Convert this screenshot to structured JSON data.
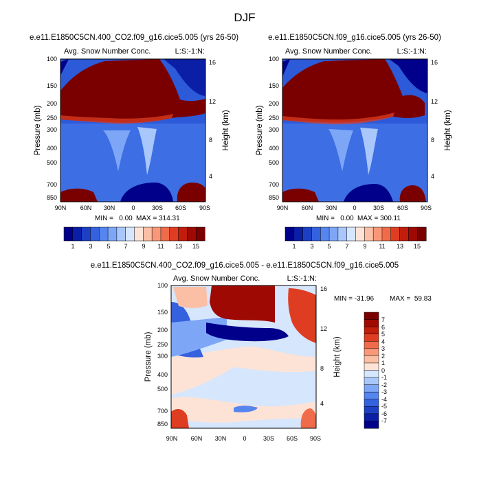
{
  "figure": {
    "title": "DJF"
  },
  "colors": {
    "sequential": [
      "#00008b",
      "#0a1fa6",
      "#1c3fc4",
      "#3461dd",
      "#5585ee",
      "#7ea6f7",
      "#a9c7fb",
      "#d6e6fd",
      "#fde3d6",
      "#fbbfa5",
      "#f89878",
      "#f06b4a",
      "#de3d22",
      "#c11d0c",
      "#9e0a03",
      "#7a0000"
    ],
    "diverging": [
      "#00008b",
      "#0a1fa6",
      "#1c3fc4",
      "#3461dd",
      "#5585ee",
      "#7ea6f7",
      "#a9c7fb",
      "#d6e6fd",
      "#fde3d6",
      "#fbbfa5",
      "#f89878",
      "#f06b4a",
      "#de3d22",
      "#c11d0c",
      "#9e0a03",
      "#7a0000"
    ]
  },
  "chart_data": [
    {
      "type": "heatmap",
      "id": "panel1",
      "title": "e.e11.E1850C5CN.400_CO2.f09_g16.cice5.005 (yrs 26-50)",
      "subtitle_left": "Avg. Snow Number Conc.",
      "subtitle_right": "L:S:-1:N:",
      "x_ticks": [
        "90N",
        "60N",
        "30N",
        "0",
        "30S",
        "60S",
        "90S"
      ],
      "xlim": [
        -90,
        90
      ],
      "ylabel": "Pressure (mb)",
      "y_ticks": [
        100,
        150,
        200,
        250,
        300,
        400,
        500,
        700,
        850
      ],
      "ylim": [
        100,
        925
      ],
      "ylabel_right": "Height (km)",
      "y_right_ticks": [
        16,
        12,
        8,
        4
      ],
      "min_label": "MIN =   0.00",
      "max_label": "MAX = 314.31",
      "min": 0.0,
      "max": 314.31,
      "colorbar_levels": [
        1,
        2,
        3,
        4,
        5,
        6,
        7,
        8,
        9,
        10,
        11,
        12,
        13,
        14,
        15
      ],
      "colorbar_tick_labels": [
        "1",
        "3",
        "5",
        "7",
        "9",
        "11",
        "13",
        "15"
      ]
    },
    {
      "type": "heatmap",
      "id": "panel2",
      "title": "e.e11.E1850C5CN.f09_g16.cice5.005 (yrs 26-50)",
      "subtitle_left": "Avg. Snow Number Conc.",
      "subtitle_right": "L:S:-1:N:",
      "x_ticks": [
        "90N",
        "60N",
        "30N",
        "0",
        "30S",
        "60S",
        "90S"
      ],
      "xlim": [
        -90,
        90
      ],
      "ylabel": "Pressure (mb)",
      "y_ticks": [
        100,
        150,
        200,
        250,
        300,
        400,
        500,
        700,
        850
      ],
      "ylim": [
        100,
        925
      ],
      "ylabel_right": "Height (km)",
      "y_right_ticks": [
        16,
        12,
        8,
        4
      ],
      "min_label": "MIN =   0.00",
      "max_label": "MAX = 300.11",
      "min": 0.0,
      "max": 300.11,
      "colorbar_levels": [
        1,
        2,
        3,
        4,
        5,
        6,
        7,
        8,
        9,
        10,
        11,
        12,
        13,
        14,
        15
      ],
      "colorbar_tick_labels": [
        "1",
        "3",
        "5",
        "7",
        "9",
        "11",
        "13",
        "15"
      ]
    },
    {
      "type": "heatmap",
      "id": "panel3",
      "title": "e.e11.E1850C5CN.400_CO2.f09_g16.cice5.005 - e.e11.E1850C5CN.f09_g16.cice5.005",
      "subtitle_left": "Avg. Snow Number Conc.",
      "subtitle_right": "L:S:-1:N:",
      "x_ticks": [
        "90N",
        "60N",
        "30N",
        "0",
        "30S",
        "60S",
        "90S"
      ],
      "xlim": [
        -90,
        90
      ],
      "ylabel": "Pressure (mb)",
      "y_ticks": [
        100,
        150,
        200,
        250,
        300,
        400,
        500,
        700,
        850
      ],
      "ylim": [
        100,
        925
      ],
      "ylabel_right": "Height (km)",
      "y_right_ticks": [
        16,
        12,
        8,
        4
      ],
      "min_label": "MIN = -31.96",
      "max_label": "MAX =  59.83",
      "min": -31.96,
      "max": 59.83,
      "colorbar_levels": [
        -7,
        -6,
        -5,
        -4,
        -3,
        -2,
        -1,
        0,
        1,
        2,
        3,
        4,
        5,
        6,
        7
      ],
      "colorbar_tick_labels": [
        "-7",
        "-6",
        "-5",
        "-4",
        "-3",
        "-2",
        "-1",
        "0",
        "1",
        "2",
        "3",
        "4",
        "5",
        "6",
        "7"
      ]
    }
  ]
}
